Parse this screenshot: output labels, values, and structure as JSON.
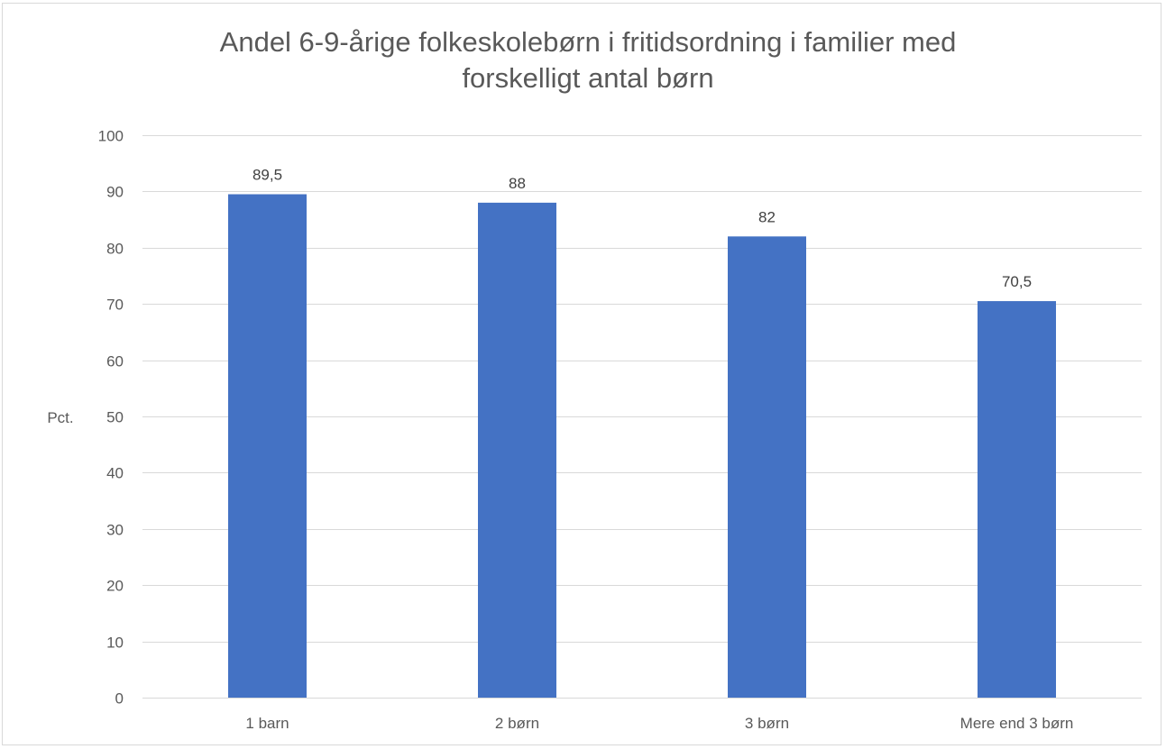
{
  "chart_data": {
    "type": "bar",
    "title_line1": "Andel 6-9-årige folkeskolebørn i fritidsordning i familier med",
    "title_line2": "forskelligt antal børn",
    "xlabel": "",
    "ylabel": "Pct.",
    "categories": [
      "1 barn",
      "2 børn",
      "3 børn",
      "Mere end 3 børn"
    ],
    "values": [
      89.5,
      88,
      82,
      70.5
    ],
    "data_labels": [
      "89,5",
      "88",
      "82",
      "70,5"
    ],
    "ylim": [
      0,
      100
    ],
    "yticks": [
      0,
      10,
      20,
      30,
      40,
      50,
      60,
      70,
      80,
      90,
      100
    ],
    "grid": true,
    "legend": "none",
    "bar_color": "#4472c4",
    "grid_color": "#d9d9d9"
  }
}
